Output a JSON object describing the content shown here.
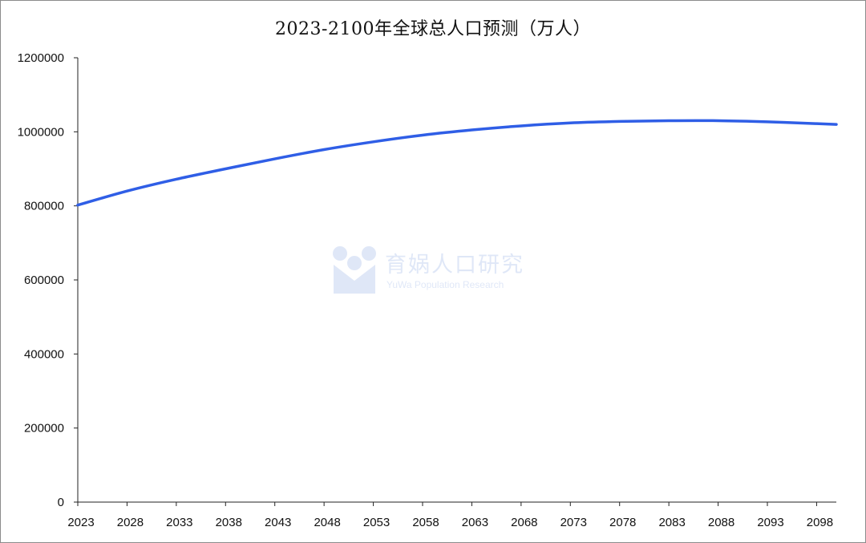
{
  "chart_data": {
    "type": "line",
    "title": "2023-2100年全球总人口预测（万人）",
    "xlabel": "",
    "ylabel": "",
    "x_tick_labels": [
      "2023",
      "2028",
      "2033",
      "2038",
      "2043",
      "2048",
      "2053",
      "2058",
      "2063",
      "2068",
      "2073",
      "2078",
      "2083",
      "2088",
      "2093",
      "2098"
    ],
    "y_tick_labels": [
      "0",
      "200000",
      "400000",
      "600000",
      "800000",
      "1000000",
      "1200000"
    ],
    "ylim": [
      0,
      1200000
    ],
    "xlim": [
      2023,
      2100
    ],
    "grid": false,
    "line_color": "#2f5ee6",
    "series": [
      {
        "x": [
          2023,
          2028,
          2033,
          2038,
          2043,
          2048,
          2053,
          2058,
          2063,
          2068,
          2073,
          2078,
          2083,
          2088,
          2093,
          2098,
          2100
        ],
        "values": [
          802000,
          840000,
          872000,
          900000,
          927000,
          952000,
          973000,
          991000,
          1005000,
          1016000,
          1024000,
          1028000,
          1030000,
          1030000,
          1027000,
          1022000,
          1020000
        ]
      }
    ]
  },
  "watermark": {
    "brand": "育娲人口研究",
    "sub": "YuWa Population Research",
    "color": "#3f6fcf"
  }
}
